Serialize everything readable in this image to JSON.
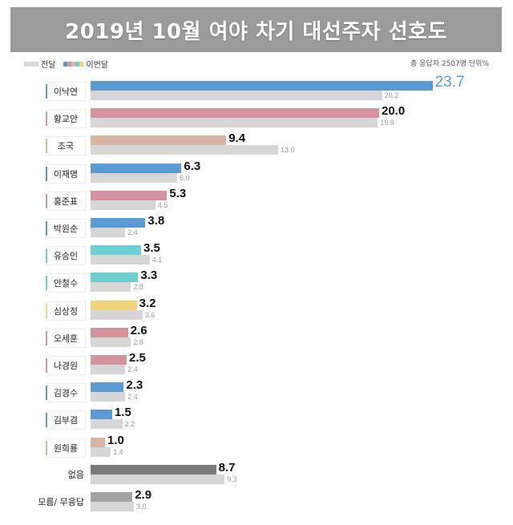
{
  "header": {
    "title": "2019년 10월 여야 차기 대선주자 선호도"
  },
  "legend": {
    "prev_label": "전달",
    "cur_label": "이번달",
    "cur_swatch_colors": [
      "#5b9bd5",
      "#d4939f",
      "#d7b4a3",
      "#6ccfd4",
      "#f0d57c"
    ]
  },
  "meta": {
    "text": "총 응답자 2507명  단위%"
  },
  "colors": {
    "blue": "#5b9bd5",
    "pink": "#d4939f",
    "tan": "#d7b4a3",
    "teal": "#6ccfd4",
    "yellow": "#f0d57c",
    "dark_gray": "#7a7a7a",
    "mid_gray": "#a3a3a3",
    "prev_gray": "#d6d6d6",
    "title_bg": "#9b9b9b"
  },
  "chart_data": {
    "type": "bar",
    "orientation": "horizontal",
    "title": "2019년 10월 여야 차기 대선주자 선호도",
    "unit": "%",
    "note": "총 응답자 2507명",
    "categories": [
      "이낙연",
      "황교안",
      "조국",
      "이재명",
      "홍준표",
      "박원순",
      "유승민",
      "안철수",
      "심상정",
      "오세훈",
      "나경원",
      "김경수",
      "김부겸",
      "원희룡",
      "없음",
      "모름/ 무응답"
    ],
    "series": [
      {
        "name": "이번달",
        "values": [
          23.7,
          20.0,
          9.4,
          6.3,
          5.3,
          3.8,
          3.5,
          3.3,
          3.2,
          2.6,
          2.5,
          2.3,
          1.5,
          1.0,
          8.7,
          2.9
        ]
      },
      {
        "name": "전달",
        "values": [
          20.2,
          19.9,
          13.0,
          6.0,
          4.5,
          2.4,
          4.1,
          2.8,
          3.6,
          2.8,
          2.4,
          2.4,
          2.2,
          1.4,
          9.3,
          3.0
        ]
      }
    ],
    "legend_position": "top-left",
    "grid": false
  },
  "rows": [
    {
      "name": "이낙연",
      "cur": "23.7",
      "prev": "20.2",
      "color": "#5b9bd5",
      "boxed": true
    },
    {
      "name": "황교안",
      "cur": "20.0",
      "prev": "19.9",
      "color": "#d4939f",
      "boxed": true
    },
    {
      "name": "조국",
      "cur": "9.4",
      "prev": "13.0",
      "color": "#d7b4a3",
      "boxed": true
    },
    {
      "name": "이재명",
      "cur": "6.3",
      "prev": "6.0",
      "color": "#5b9bd5",
      "boxed": true
    },
    {
      "name": "홍준표",
      "cur": "5.3",
      "prev": "4.5",
      "color": "#d4939f",
      "boxed": true
    },
    {
      "name": "박원순",
      "cur": "3.8",
      "prev": "2.4",
      "color": "#5b9bd5",
      "boxed": true
    },
    {
      "name": "유승민",
      "cur": "3.5",
      "prev": "4.1",
      "color": "#6ccfd4",
      "boxed": true
    },
    {
      "name": "안철수",
      "cur": "3.3",
      "prev": "2.8",
      "color": "#6ccfd4",
      "boxed": true
    },
    {
      "name": "심상정",
      "cur": "3.2",
      "prev": "3.6",
      "color": "#f0d57c",
      "boxed": true
    },
    {
      "name": "오세훈",
      "cur": "2.6",
      "prev": "2.8",
      "color": "#d4939f",
      "boxed": true
    },
    {
      "name": "나경원",
      "cur": "2.5",
      "prev": "2.4",
      "color": "#d4939f",
      "boxed": true
    },
    {
      "name": "김경수",
      "cur": "2.3",
      "prev": "2.4",
      "color": "#5b9bd5",
      "boxed": true
    },
    {
      "name": "김부겸",
      "cur": "1.5",
      "prev": "2.2",
      "color": "#5b9bd5",
      "boxed": true
    },
    {
      "name": "원희룡",
      "cur": "1.0",
      "prev": "1.4",
      "color": "#d7b4a3",
      "boxed": true
    },
    {
      "name": "없음",
      "cur": "8.7",
      "prev": "9.3",
      "color": "#7a7a7a",
      "boxed": false
    },
    {
      "name": "모름/ 무응답",
      "cur": "2.9",
      "prev": "3.0",
      "color": "#a3a3a3",
      "boxed": false
    }
  ]
}
